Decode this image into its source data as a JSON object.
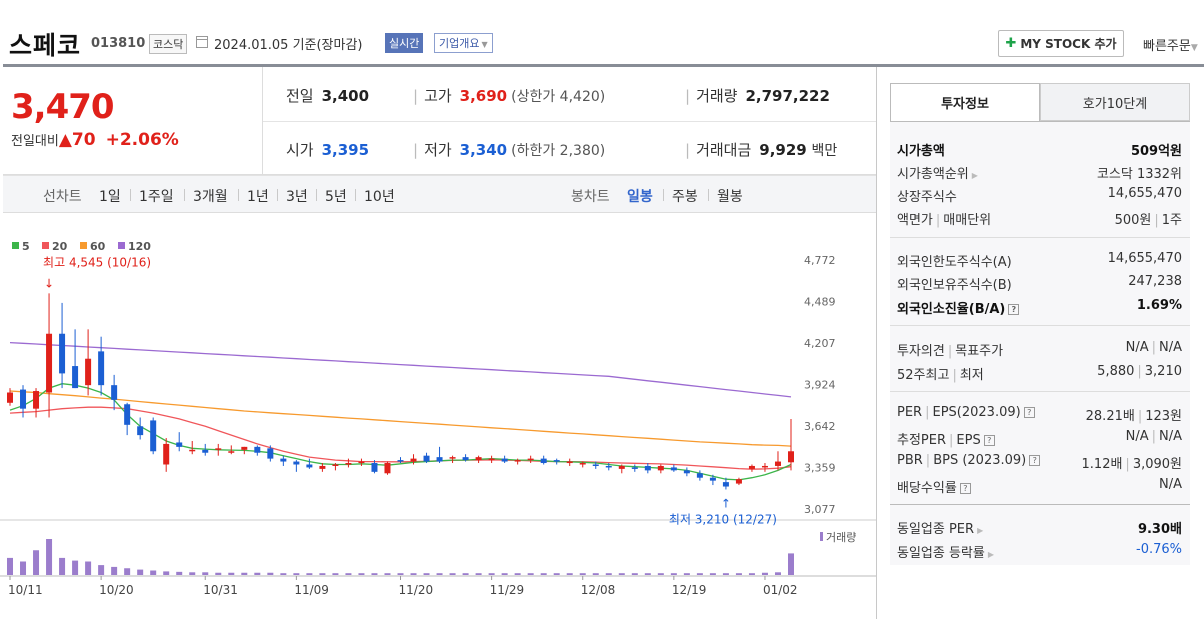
{
  "header": {
    "stock_name": "스페코",
    "stock_code": "013810",
    "market": "코스닥",
    "date_basis": "2024.01.05  기준(장마감)",
    "realtime_label": "실시간",
    "overview_label": "기업개요",
    "my_stock_label": "MY STOCK 추가",
    "quick_order_label": "빠른주문"
  },
  "price": {
    "current": "3,470",
    "change_label": "전일대비",
    "change": "70",
    "change_pct": "+2.06%",
    "prev_close_label": "전일",
    "prev_close": "3,400",
    "high_label": "고가",
    "high": "3,690",
    "upper_limit": "(상한가 4,420)",
    "volume_label": "거래량",
    "volume": "2,797,222",
    "open_label": "시가",
    "open": "3,395",
    "low_label": "저가",
    "low": "3,340",
    "lower_limit": "(하한가 2,380)",
    "amount_label": "거래대금",
    "amount": "9,929",
    "amount_unit": "백만"
  },
  "period_bar": {
    "line_label": "선차트",
    "line_periods": [
      "1일",
      "1주일",
      "3개월",
      "1년",
      "3년",
      "5년",
      "10년"
    ],
    "candle_label": "봉차트",
    "candle_periods": [
      "일봉",
      "주봉",
      "월봉"
    ],
    "selected": "일봉"
  },
  "chart_data": {
    "type": "candlestick",
    "legend": [
      {
        "name": "5",
        "color": "#3cb54a"
      },
      {
        "name": "20",
        "color": "#f0565a"
      },
      {
        "name": "60",
        "color": "#f79a2e"
      },
      {
        "name": "120",
        "color": "#9b6ad1"
      }
    ],
    "y_ticks": [
      "4,772",
      "4,489",
      "4,207",
      "3,924",
      "3,642",
      "3,359",
      "3,077"
    ],
    "ylim": [
      3077,
      4772
    ],
    "x_ticks": [
      "10/11",
      "10/20",
      "10/31",
      "11/09",
      "11/20",
      "11/29",
      "12/08",
      "12/19",
      "01/02"
    ],
    "x_tick_index": [
      0,
      7,
      15,
      22,
      30,
      37,
      44,
      51,
      58
    ],
    "annotation_high": "최고 4,545 (10/16)",
    "annotation_high_index": 3,
    "annotation_high_value": 4545,
    "annotation_low": "최저 3,210 (12/27)",
    "annotation_low_index": 55,
    "annotation_low_value": 3210,
    "volume_label": "거래량",
    "candles": [
      {
        "o": 3800,
        "h": 3900,
        "l": 3780,
        "c": 3870
      },
      {
        "o": 3890,
        "h": 3920,
        "l": 3700,
        "c": 3760
      },
      {
        "o": 3760,
        "h": 3900,
        "l": 3700,
        "c": 3880
      },
      {
        "o": 3870,
        "h": 4545,
        "l": 3700,
        "c": 4270
      },
      {
        "o": 4270,
        "h": 4480,
        "l": 3900,
        "c": 4000
      },
      {
        "o": 4050,
        "h": 4300,
        "l": 3900,
        "c": 3900
      },
      {
        "o": 3920,
        "h": 4300,
        "l": 3850,
        "c": 4100
      },
      {
        "o": 4150,
        "h": 4250,
        "l": 3850,
        "c": 3920
      },
      {
        "o": 3920,
        "h": 3990,
        "l": 3750,
        "c": 3820
      },
      {
        "o": 3790,
        "h": 3800,
        "l": 3580,
        "c": 3650
      },
      {
        "o": 3640,
        "h": 3700,
        "l": 3550,
        "c": 3580
      },
      {
        "o": 3680,
        "h": 3700,
        "l": 3450,
        "c": 3470
      },
      {
        "o": 3380,
        "h": 3560,
        "l": 3330,
        "c": 3520
      },
      {
        "o": 3530,
        "h": 3600,
        "l": 3470,
        "c": 3500
      },
      {
        "o": 3480,
        "h": 3540,
        "l": 3450,
        "c": 3480
      },
      {
        "o": 3480,
        "h": 3520,
        "l": 3440,
        "c": 3460
      },
      {
        "o": 3480,
        "h": 3520,
        "l": 3440,
        "c": 3490
      },
      {
        "o": 3470,
        "h": 3510,
        "l": 3450,
        "c": 3470
      },
      {
        "o": 3480,
        "h": 3500,
        "l": 3450,
        "c": 3500
      },
      {
        "o": 3500,
        "h": 3510,
        "l": 3440,
        "c": 3460
      },
      {
        "o": 3490,
        "h": 3510,
        "l": 3400,
        "c": 3420
      },
      {
        "o": 3420,
        "h": 3440,
        "l": 3370,
        "c": 3400
      },
      {
        "o": 3400,
        "h": 3410,
        "l": 3330,
        "c": 3380
      },
      {
        "o": 3380,
        "h": 3420,
        "l": 3350,
        "c": 3360
      },
      {
        "o": 3350,
        "h": 3390,
        "l": 3330,
        "c": 3370
      },
      {
        "o": 3370,
        "h": 3390,
        "l": 3340,
        "c": 3380
      },
      {
        "o": 3380,
        "h": 3420,
        "l": 3360,
        "c": 3390
      },
      {
        "o": 3390,
        "h": 3420,
        "l": 3370,
        "c": 3400
      },
      {
        "o": 3390,
        "h": 3410,
        "l": 3320,
        "c": 3330
      },
      {
        "o": 3320,
        "h": 3400,
        "l": 3310,
        "c": 3390
      },
      {
        "o": 3410,
        "h": 3430,
        "l": 3390,
        "c": 3400
      },
      {
        "o": 3400,
        "h": 3450,
        "l": 3380,
        "c": 3420
      },
      {
        "o": 3440,
        "h": 3460,
        "l": 3390,
        "c": 3400
      },
      {
        "o": 3430,
        "h": 3500,
        "l": 3390,
        "c": 3400
      },
      {
        "o": 3420,
        "h": 3440,
        "l": 3390,
        "c": 3430
      },
      {
        "o": 3430,
        "h": 3450,
        "l": 3400,
        "c": 3410
      },
      {
        "o": 3410,
        "h": 3440,
        "l": 3390,
        "c": 3430
      },
      {
        "o": 3410,
        "h": 3440,
        "l": 3390,
        "c": 3420
      },
      {
        "o": 3420,
        "h": 3440,
        "l": 3390,
        "c": 3400
      },
      {
        "o": 3400,
        "h": 3420,
        "l": 3380,
        "c": 3410
      },
      {
        "o": 3410,
        "h": 3440,
        "l": 3390,
        "c": 3420
      },
      {
        "o": 3420,
        "h": 3440,
        "l": 3380,
        "c": 3390
      },
      {
        "o": 3410,
        "h": 3420,
        "l": 3380,
        "c": 3400
      },
      {
        "o": 3390,
        "h": 3420,
        "l": 3370,
        "c": 3400
      },
      {
        "o": 3380,
        "h": 3400,
        "l": 3360,
        "c": 3390
      },
      {
        "o": 3380,
        "h": 3400,
        "l": 3350,
        "c": 3370
      },
      {
        "o": 3370,
        "h": 3390,
        "l": 3340,
        "c": 3360
      },
      {
        "o": 3350,
        "h": 3380,
        "l": 3320,
        "c": 3370
      },
      {
        "o": 3360,
        "h": 3380,
        "l": 3330,
        "c": 3350
      },
      {
        "o": 3370,
        "h": 3390,
        "l": 3320,
        "c": 3340
      },
      {
        "o": 3340,
        "h": 3380,
        "l": 3320,
        "c": 3370
      },
      {
        "o": 3360,
        "h": 3380,
        "l": 3330,
        "c": 3340
      },
      {
        "o": 3340,
        "h": 3360,
        "l": 3300,
        "c": 3320
      },
      {
        "o": 3320,
        "h": 3340,
        "l": 3270,
        "c": 3290
      },
      {
        "o": 3290,
        "h": 3310,
        "l": 3240,
        "c": 3270
      },
      {
        "o": 3260,
        "h": 3290,
        "l": 3210,
        "c": 3230
      },
      {
        "o": 3250,
        "h": 3290,
        "l": 3240,
        "c": 3280
      },
      {
        "o": 3350,
        "h": 3380,
        "l": 3330,
        "c": 3370
      },
      {
        "o": 3360,
        "h": 3390,
        "l": 3330,
        "c": 3370
      },
      {
        "o": 3370,
        "h": 3470,
        "l": 3340,
        "c": 3400
      },
      {
        "o": 3395,
        "h": 3690,
        "l": 3340,
        "c": 3470
      }
    ],
    "volumes": [
      38,
      30,
      55,
      80,
      38,
      32,
      30,
      22,
      18,
      15,
      12,
      10,
      8,
      7,
      6,
      6,
      5,
      5,
      5,
      5,
      5,
      4,
      4,
      4,
      4,
      4,
      4,
      4,
      4,
      4,
      4,
      4,
      4,
      4,
      4,
      4,
      4,
      4,
      4,
      4,
      4,
      4,
      4,
      4,
      4,
      4,
      4,
      4,
      4,
      4,
      4,
      4,
      4,
      4,
      4,
      4,
      4,
      4,
      5,
      6,
      48
    ],
    "ma5": [
      3750,
      3780,
      3830,
      3900,
      3930,
      3920,
      3900,
      3870,
      3820,
      3720,
      3640,
      3590,
      3540,
      3510,
      3490,
      3485,
      3480,
      3478,
      3476,
      3470,
      3460,
      3440,
      3420,
      3400,
      3385,
      3380,
      3380,
      3385,
      3380,
      3375,
      3385,
      3395,
      3400,
      3405,
      3410,
      3410,
      3415,
      3420,
      3415,
      3410,
      3410,
      3405,
      3400,
      3398,
      3395,
      3390,
      3380,
      3370,
      3365,
      3360,
      3355,
      3350,
      3340,
      3320,
      3300,
      3280,
      3275,
      3290,
      3310,
      3340,
      3380
    ],
    "ma20": [
      3730,
      3735,
      3740,
      3750,
      3760,
      3765,
      3770,
      3770,
      3765,
      3760,
      3745,
      3730,
      3710,
      3690,
      3665,
      3640,
      3610,
      3580,
      3550,
      3520,
      3495,
      3470,
      3450,
      3430,
      3420,
      3410,
      3405,
      3400,
      3400,
      3398,
      3398,
      3400,
      3402,
      3405,
      3408,
      3410,
      3410,
      3412,
      3410,
      3408,
      3405,
      3402,
      3400,
      3400,
      3398,
      3396,
      3393,
      3390,
      3388,
      3386,
      3384,
      3380,
      3376,
      3370,
      3364,
      3358,
      3352,
      3348,
      3350,
      3355,
      3365
    ],
    "ma60": [
      3880,
      3875,
      3870,
      3862,
      3855,
      3848,
      3840,
      3832,
      3825,
      3816,
      3808,
      3800,
      3792,
      3784,
      3776,
      3768,
      3760,
      3752,
      3744,
      3738,
      3732,
      3726,
      3720,
      3714,
      3708,
      3702,
      3696,
      3690,
      3684,
      3678,
      3672,
      3666,
      3660,
      3654,
      3648,
      3642,
      3636,
      3630,
      3624,
      3618,
      3612,
      3606,
      3600,
      3594,
      3588,
      3582,
      3576,
      3570,
      3564,
      3558,
      3552,
      3546,
      3540,
      3534,
      3530,
      3525,
      3520,
      3515,
      3512,
      3510,
      3505
    ],
    "ma120": [
      4210,
      4205,
      4200,
      4195,
      4190,
      4185,
      4180,
      4175,
      4170,
      4165,
      4160,
      4155,
      4150,
      4145,
      4140,
      4135,
      4130,
      4125,
      4120,
      4115,
      4110,
      4105,
      4100,
      4095,
      4090,
      4085,
      4080,
      4075,
      4070,
      4065,
      4060,
      4055,
      4050,
      4045,
      4040,
      4035,
      4030,
      4025,
      4020,
      4015,
      4010,
      4005,
      4000,
      3995,
      3990,
      3985,
      3980,
      3970,
      3960,
      3950,
      3940,
      3930,
      3920,
      3910,
      3900,
      3890,
      3880,
      3870,
      3860,
      3850,
      3840
    ]
  },
  "side_panel": {
    "tab_active": "투자정보",
    "tab_other": "호가10단계",
    "rows": [
      {
        "k": "시가총액",
        "v": "509억원"
      },
      {
        "k": "시가총액순위",
        "v": "코스닥 1332위"
      },
      {
        "k": "상장주식수",
        "v": "14,655,470"
      },
      {
        "k": "액면가",
        "k2": "매매단위",
        "v": "500원",
        "v2": "1주"
      },
      {
        "k": "외국인한도주식수(A)",
        "v": "14,655,470"
      },
      {
        "k": "외국인보유주식수(B)",
        "v": "247,238"
      },
      {
        "k": "외국인소진율(B/A)",
        "v": "1.69%"
      },
      {
        "k": "투자의견",
        "k2": "목표주가",
        "v": "N/A",
        "v2": "N/A"
      },
      {
        "k": "52주최고",
        "k2": "최저",
        "v": "5,880",
        "v2": "3,210"
      },
      {
        "k": "PER",
        "k2": "EPS(2023.09)",
        "v": "28.21배",
        "v2": "123원"
      },
      {
        "k": "추정PER",
        "k2": "EPS",
        "v": "N/A",
        "v2": "N/A"
      },
      {
        "k": "PBR",
        "k2": "BPS (2023.09)",
        "v": "1.12배",
        "v2": "3,090원"
      },
      {
        "k": "배당수익률",
        "v": "N/A"
      },
      {
        "k": "동일업종 PER",
        "v": "9.30배"
      },
      {
        "k": "동일업종 등락률",
        "v": "-0.76%"
      }
    ]
  },
  "colors": {
    "up": "#e0211a",
    "down": "#1b5fd3",
    "accent": "#5774b8",
    "volume": "#9b7dcc"
  }
}
